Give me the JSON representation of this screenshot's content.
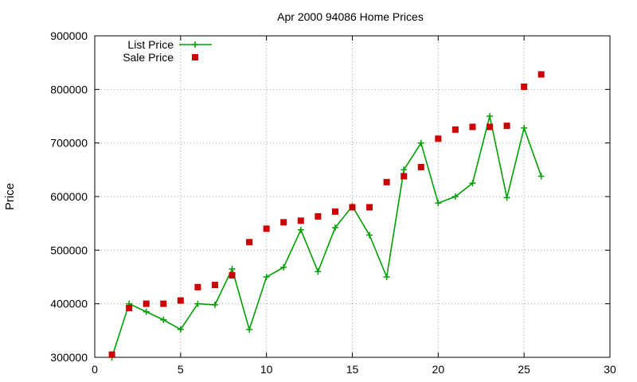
{
  "chart_data": {
    "type": "line",
    "title": "Apr 2000 94086 Home Prices",
    "ylabel": "Price",
    "xlabel": "",
    "xlim": [
      0,
      30
    ],
    "ylim": [
      300000,
      900000
    ],
    "xticks": [
      0,
      5,
      10,
      15,
      20,
      25,
      30
    ],
    "yticks": [
      300000,
      400000,
      500000,
      600000,
      700000,
      800000,
      900000
    ],
    "grid": true,
    "legend_position": "top-left",
    "series": [
      {
        "name": "List Price",
        "style": "linespoints",
        "marker": "plus",
        "color": "#00a000",
        "x": [
          1,
          2,
          3,
          4,
          5,
          6,
          7,
          8,
          9,
          10,
          11,
          12,
          13,
          14,
          15,
          16,
          17,
          18,
          19,
          20,
          21,
          22,
          23,
          24,
          25,
          26
        ],
        "y": [
          300000,
          400000,
          385000,
          370000,
          352000,
          400000,
          398000,
          465000,
          352000,
          450000,
          468000,
          538000,
          460000,
          542000,
          582000,
          528000,
          450000,
          650000,
          700000,
          588000,
          600000,
          625000,
          750000,
          598000,
          728000,
          638000
        ]
      },
      {
        "name": "Sale Price",
        "style": "points",
        "marker": "square",
        "color": "#cc0000",
        "x": [
          1,
          2,
          3,
          4,
          5,
          6,
          7,
          8,
          9,
          10,
          11,
          12,
          13,
          14,
          15,
          16,
          17,
          18,
          19,
          20,
          21,
          22,
          23,
          24,
          25,
          26
        ],
        "y": [
          305000,
          392000,
          400000,
          400000,
          406000,
          431000,
          435000,
          453000,
          515000,
          540000,
          552000,
          555000,
          563000,
          572000,
          580000,
          580000,
          627000,
          638000,
          655000,
          708000,
          725000,
          730000,
          730000,
          732000,
          805000,
          828000
        ]
      }
    ]
  }
}
